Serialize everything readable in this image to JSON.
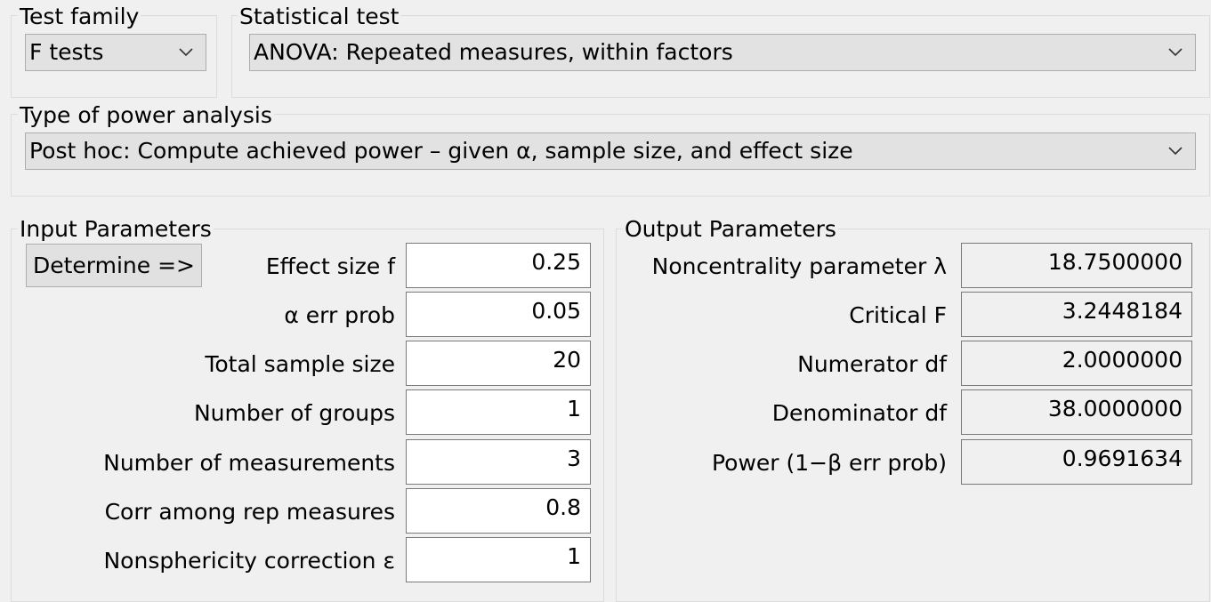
{
  "test_family": {
    "label": "Test family",
    "selected": "F tests"
  },
  "statistical_test": {
    "label": "Statistical test",
    "selected": "ANOVA: Repeated measures, within factors"
  },
  "power_analysis": {
    "label": "Type of power analysis",
    "selected": "Post hoc: Compute achieved power – given α, sample size, and effect size"
  },
  "input_parameters": {
    "label": "Input Parameters",
    "determine_button": "Determine =>",
    "fields": [
      {
        "label": "Effect size f",
        "value": "0.25"
      },
      {
        "label": "α err prob",
        "value": "0.05"
      },
      {
        "label": "Total sample size",
        "value": "20"
      },
      {
        "label": "Number of groups",
        "value": "1"
      },
      {
        "label": "Number of measurements",
        "value": "3"
      },
      {
        "label": "Corr among rep measures",
        "value": "0.8"
      },
      {
        "label": "Nonsphericity correction ε",
        "value": "1"
      }
    ]
  },
  "output_parameters": {
    "label": "Output Parameters",
    "fields": [
      {
        "label": "Noncentrality parameter λ",
        "value": "18.7500000"
      },
      {
        "label": "Critical F",
        "value": "3.2448184"
      },
      {
        "label": "Numerator df",
        "value": "2.0000000"
      },
      {
        "label": "Denominator df",
        "value": "38.0000000"
      },
      {
        "label": "Power (1−β err prob)",
        "value": "0.9691634"
      }
    ]
  },
  "icons": {
    "dropdown": "chevron-down-icon"
  }
}
